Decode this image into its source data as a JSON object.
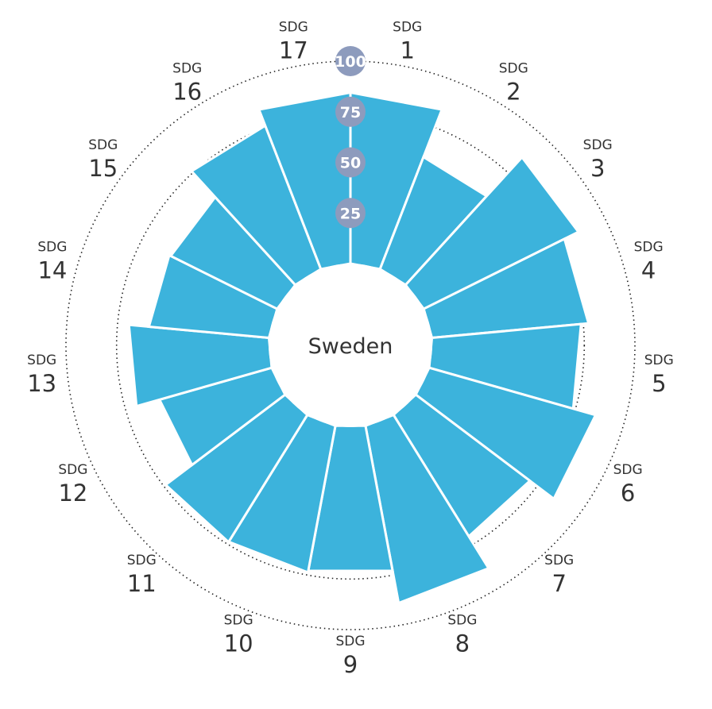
{
  "chart_data": {
    "type": "polar-bar",
    "country": "Sweden",
    "label_prefix": "SDG",
    "categories": [
      "1",
      "2",
      "3",
      "4",
      "5",
      "6",
      "7",
      "8",
      "9",
      "10",
      "11",
      "12",
      "13",
      "14",
      "15",
      "16",
      "17"
    ],
    "values": [
      84.5,
      59.4,
      85.3,
      77.6,
      73.9,
      85.4,
      70.6,
      89.1,
      72.9,
      73.7,
      73.9,
      57.6,
      69.4,
      59.5,
      58.7,
      76.0,
      84.5
    ],
    "rlim": [
      0,
      100
    ],
    "ring_ticks": [
      "25",
      "50",
      "75",
      "100"
    ],
    "ring_values": [
      25,
      50,
      75,
      100
    ],
    "colors": {
      "bar": "#3cb3dc",
      "tick_badge": "#8d9bbd",
      "grid": "#222222"
    }
  }
}
